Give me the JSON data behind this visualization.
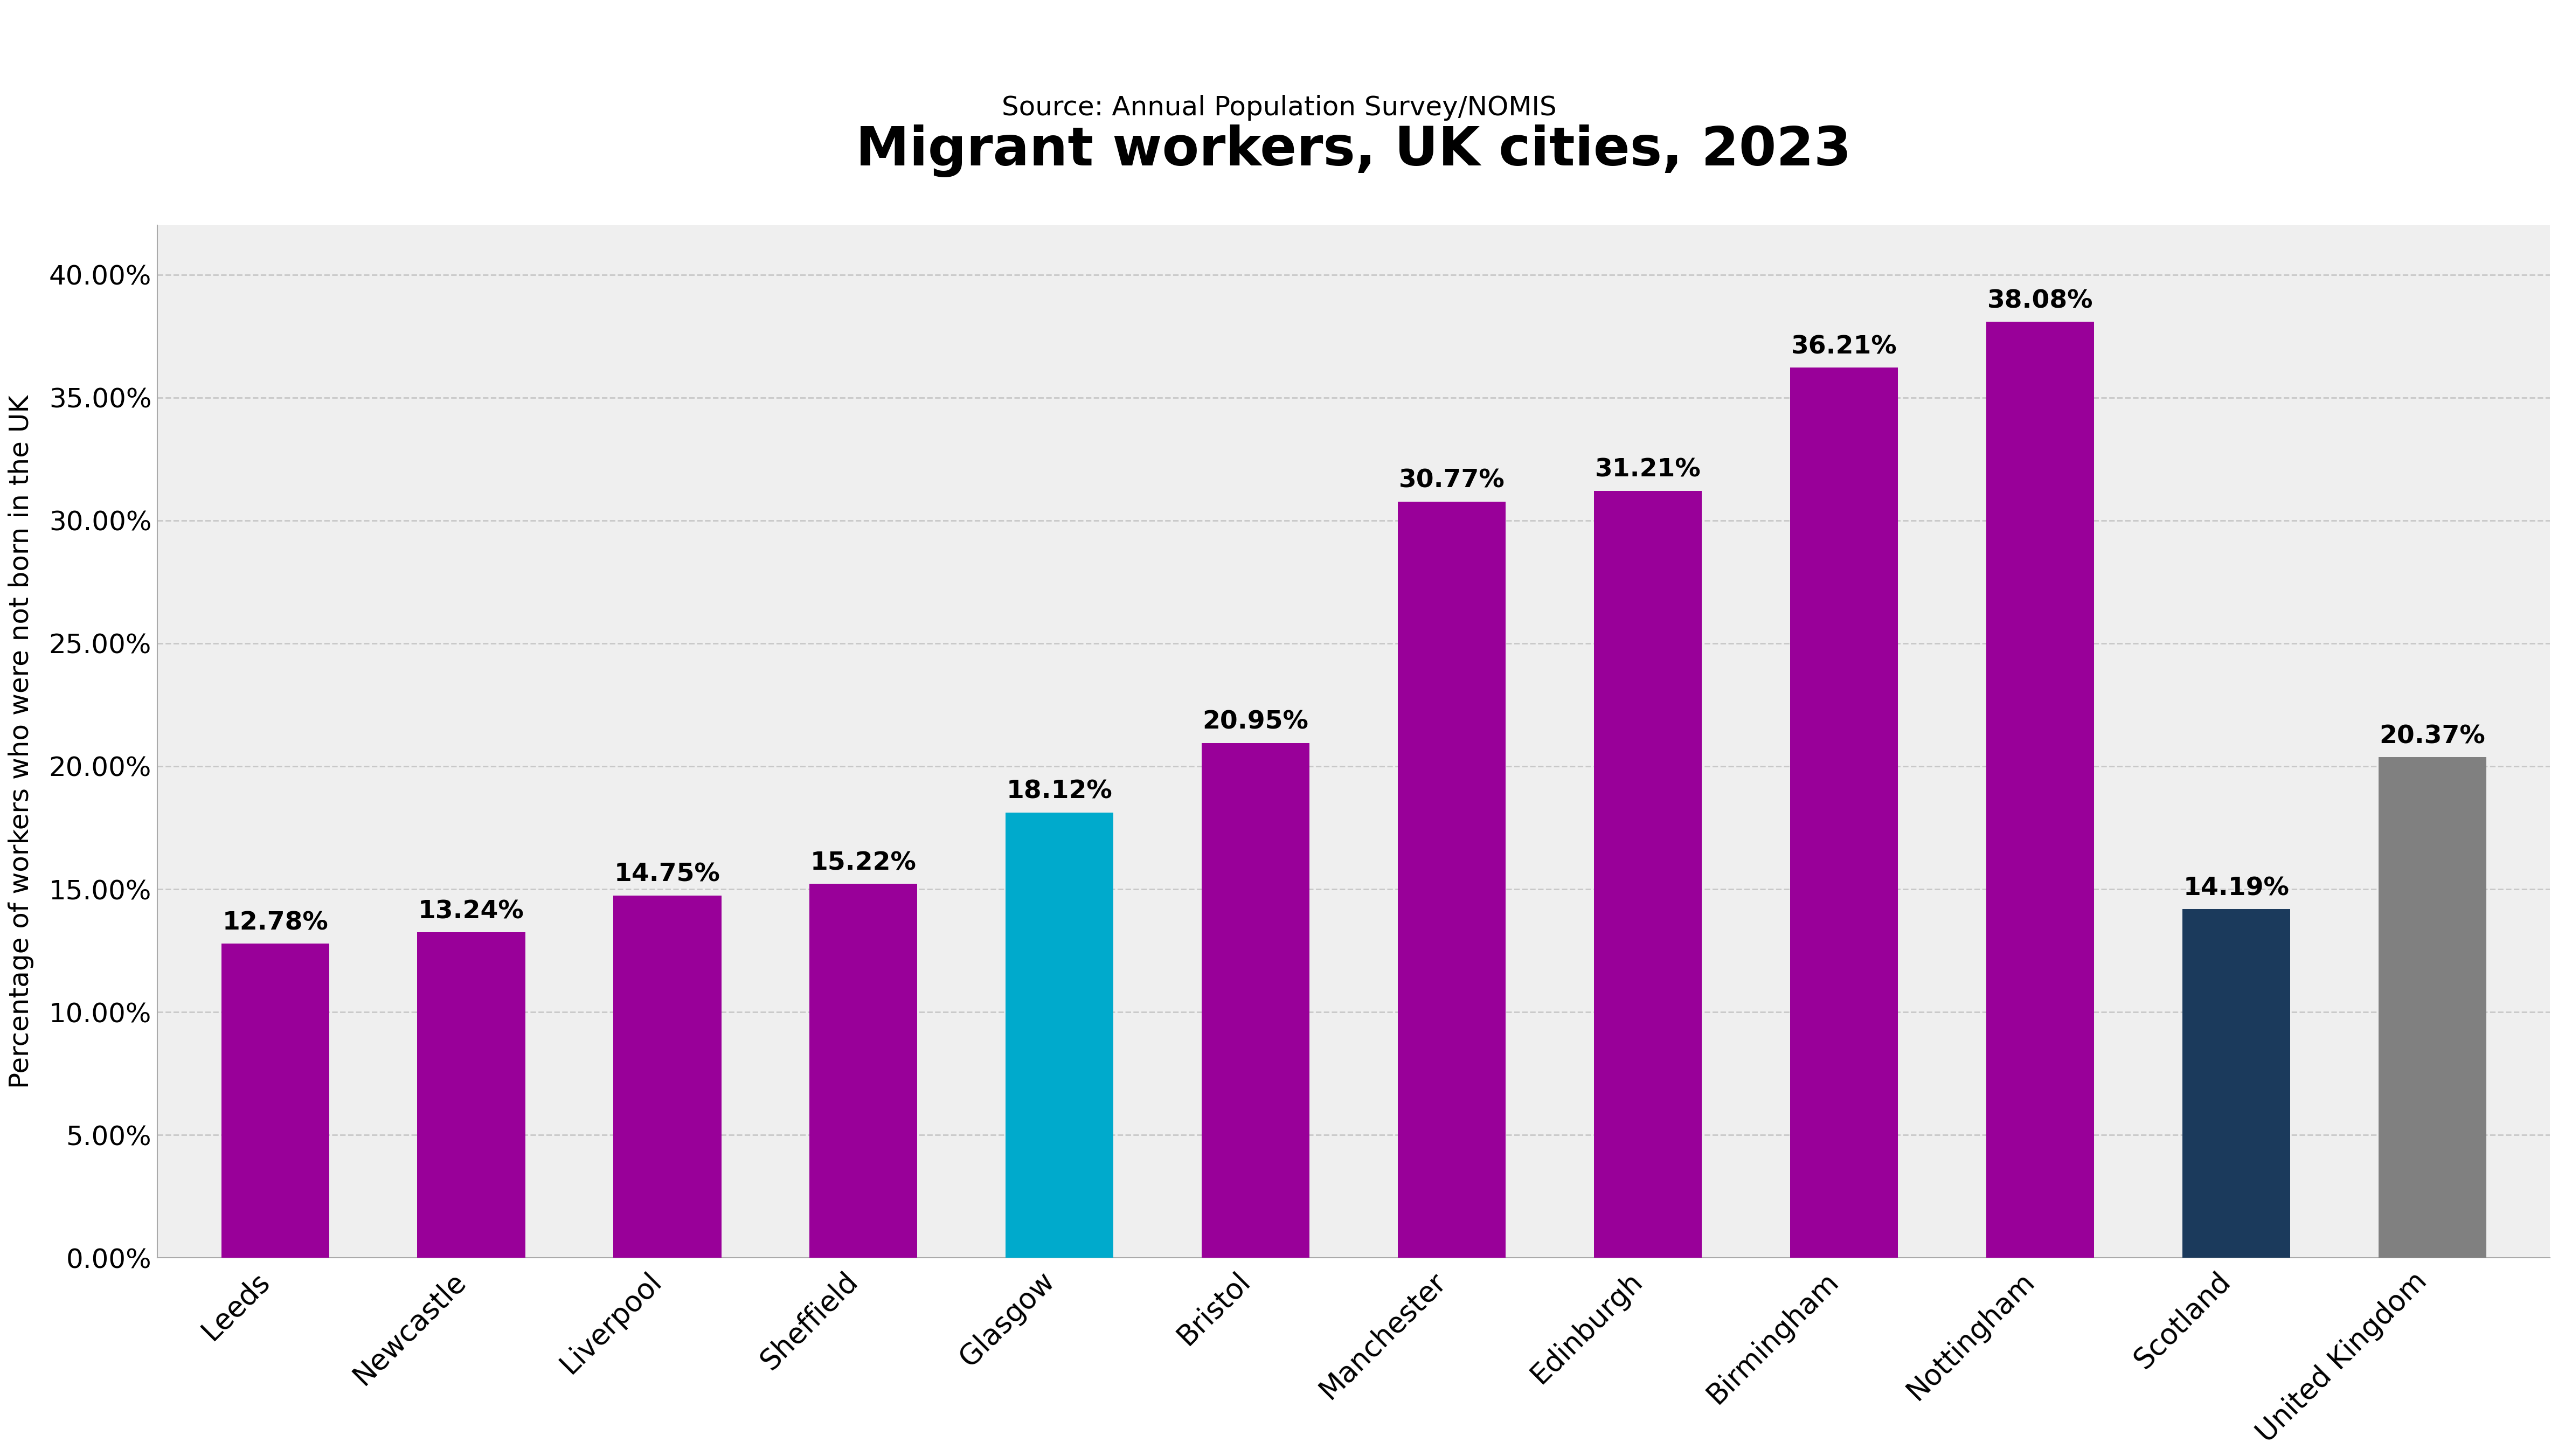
{
  "title": "Migrant workers, UK cities, 2023",
  "subtitle": "Source: Annual Population Survey/NOMIS",
  "ylabel": "Percentage of workers who were not born in the UK",
  "categories": [
    "Leeds",
    "Newcastle",
    "Liverpool",
    "Sheffield",
    "Glasgow",
    "Bristol",
    "Manchester",
    "Edinburgh",
    "Birmingham",
    "Nottingham",
    "Scotland",
    "United Kingdom"
  ],
  "values": [
    12.78,
    13.24,
    14.75,
    15.22,
    18.12,
    20.95,
    30.77,
    31.21,
    36.21,
    38.08,
    14.19,
    20.37
  ],
  "bar_colors": [
    "#990099",
    "#990099",
    "#990099",
    "#990099",
    "#00AACC",
    "#990099",
    "#990099",
    "#990099",
    "#990099",
    "#990099",
    "#1B3A5C",
    "#808080"
  ],
  "value_labels": [
    "12.78%",
    "13.24%",
    "14.75%",
    "15.22%",
    "18.12%",
    "20.95%",
    "30.77%",
    "31.21%",
    "36.21%",
    "38.08%",
    "14.19%",
    "20.37%"
  ],
  "ylim": [
    0,
    42
  ],
  "yticks": [
    0,
    5,
    10,
    15,
    20,
    25,
    30,
    35,
    40
  ],
  "ytick_labels": [
    "0.00%",
    "5.00%",
    "10.00%",
    "15.00%",
    "20.00%",
    "25.00%",
    "30.00%",
    "35.00%",
    "40.00%"
  ],
  "fig_background_color": "#ffffff",
  "plot_background_color": "#efefef",
  "title_fontsize": 72,
  "subtitle_fontsize": 36,
  "ylabel_fontsize": 36,
  "tick_fontsize": 36,
  "bar_label_fontsize": 34,
  "xlabel_fontsize": 38,
  "grid_color": "#c8c8c8",
  "bar_width": 0.55,
  "spine_color": "#aaaaaa"
}
